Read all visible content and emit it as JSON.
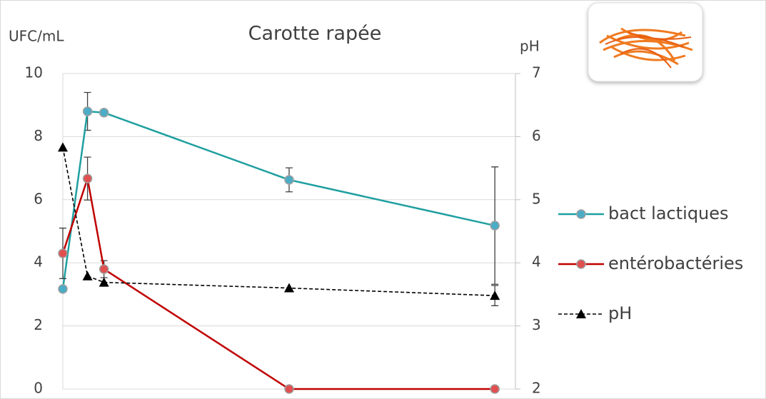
{
  "chart_data": {
    "type": "line",
    "title": "Carotte rapée",
    "y_label": "UFC/mL",
    "y2_label": "pH",
    "x": [
      0,
      1.2,
      2,
      11,
      21
    ],
    "xlim": [
      0,
      22
    ],
    "ylim": [
      0,
      10
    ],
    "yticks": [
      0,
      2,
      4,
      6,
      8,
      10
    ],
    "y2lim": [
      2,
      7
    ],
    "y2ticks": [
      2,
      3,
      4,
      5,
      6,
      7
    ],
    "grid": true,
    "legend": "right",
    "series": [
      {
        "name": "bact lactiques",
        "color": "#1f9fa0",
        "marker_color": "#4bacc6",
        "marker": "circle",
        "dash": false,
        "values": [
          3.17,
          8.8,
          8.76,
          6.63,
          5.18
        ],
        "errors": [
          null,
          0.6,
          null,
          0.38,
          1.86
        ]
      },
      {
        "name": "entérobactéries",
        "color": "#c00000",
        "marker_color": "#e05050",
        "marker": "circle",
        "dash": false,
        "values": [
          4.3,
          6.67,
          3.8,
          0,
          0
        ],
        "errors": [
          0.8,
          0.68,
          0.27,
          null,
          null
        ]
      },
      {
        "name": "pH",
        "color": "#000000",
        "marker_color": "#000000",
        "marker": "triangle",
        "dash": true,
        "axis": "y2",
        "values": [
          5.83,
          3.79,
          3.69,
          3.6,
          3.48
        ],
        "errors": [
          null,
          null,
          null,
          null,
          0.16
        ]
      }
    ]
  }
}
